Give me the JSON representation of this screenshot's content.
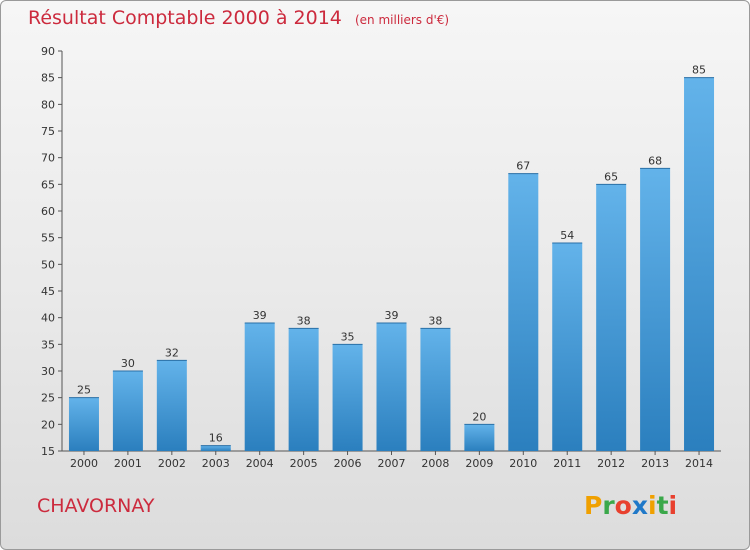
{
  "title": "Résultat Comptable 2000 à 2014",
  "subtitle": "(en milliers d'€)",
  "location": "CHAVORNAY",
  "logo": [
    "P",
    "r",
    "o",
    "x",
    "i",
    "t",
    "i"
  ],
  "colors": {
    "title": "#cc2a3d",
    "bar_top": "#63b3ea",
    "bar_bottom": "#2b7fbe"
  },
  "chart_data": {
    "type": "bar",
    "categories": [
      "2000",
      "2001",
      "2002",
      "2003",
      "2004",
      "2005",
      "2006",
      "2007",
      "2008",
      "2009",
      "2010",
      "2011",
      "2012",
      "2013",
      "2014"
    ],
    "values": [
      25,
      30,
      32,
      16,
      39,
      38,
      35,
      39,
      38,
      20,
      67,
      54,
      65,
      68,
      85
    ],
    "ylim": [
      15,
      90
    ],
    "yticks": [
      15,
      20,
      25,
      30,
      35,
      40,
      45,
      50,
      55,
      60,
      65,
      70,
      75,
      80,
      85,
      90
    ],
    "grid": false,
    "data_labels": true
  }
}
